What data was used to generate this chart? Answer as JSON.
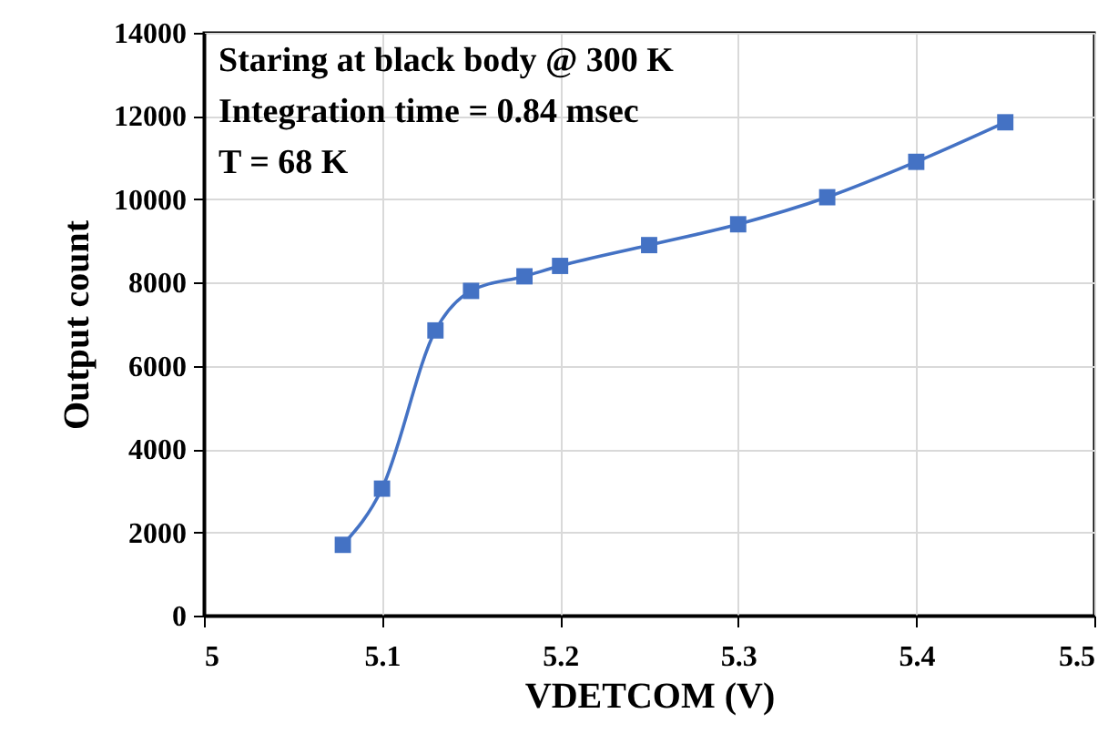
{
  "chart_data": {
    "type": "line",
    "xlabel": "VDETCOM (V)",
    "ylabel": "Output count",
    "annotations": [
      "Staring at black body @ 300 K",
      "Integration time  = 0.84 msec",
      "T = 68 K"
    ],
    "x": [
      5.078,
      5.1,
      5.13,
      5.15,
      5.18,
      5.2,
      5.25,
      5.3,
      5.35,
      5.4,
      5.45
    ],
    "series": [
      {
        "color": "#4472c4",
        "values": [
          1700,
          3050,
          6850,
          7800,
          8150,
          8400,
          8900,
          9400,
          10050,
          10900,
          11850
        ]
      }
    ],
    "xlim": [
      5,
      5.5
    ],
    "xticks": [
      5,
      5.1,
      5.2,
      5.3,
      5.4,
      5.5
    ],
    "ylim": [
      0,
      14000
    ],
    "yticks": [
      0,
      2000,
      4000,
      6000,
      8000,
      10000,
      12000,
      14000
    ],
    "grid": true,
    "marker": "square",
    "line_style": "solid"
  }
}
